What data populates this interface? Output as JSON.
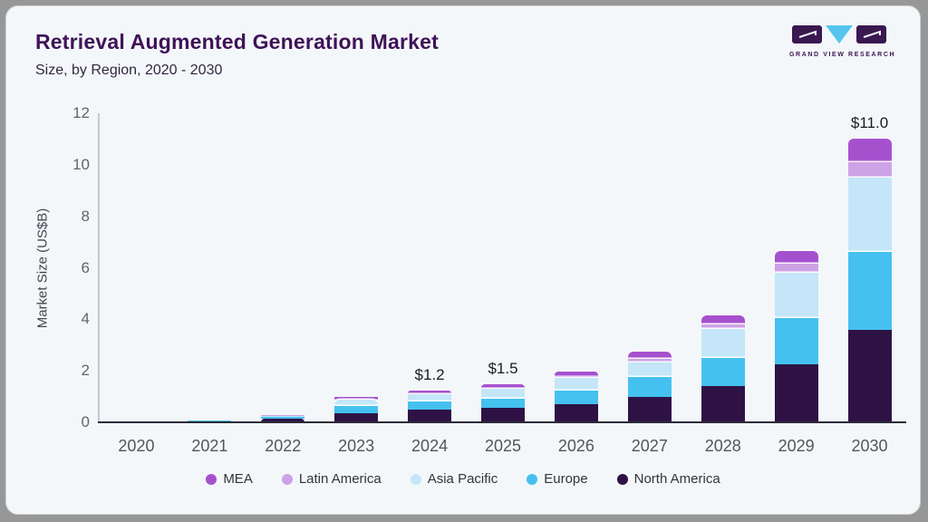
{
  "header": {
    "title": "Retrieval Augmented Generation Market",
    "subtitle": "Size, by Region, 2020 - 2030",
    "logo_text": "GRAND VIEW RESEARCH"
  },
  "colors": {
    "card_bg": "#f3f7f9",
    "outer_bg": "#979797",
    "title_text": "#3f1257",
    "logo_purple": "#3a1850",
    "logo_blue": "#56c5ee",
    "baseline": "#2b2b38",
    "axis_line": "#c7cad0"
  },
  "chart_data": {
    "type": "bar",
    "stacked": true,
    "title": "Retrieval Augmented Generation Market",
    "subtitle": "Size, by Region, 2020 - 2030",
    "xlabel": "",
    "ylabel": "Market Size (US$B)",
    "ylim": [
      0,
      12
    ],
    "yticks": [
      0,
      2,
      4,
      6,
      8,
      10,
      12
    ],
    "grid": false,
    "legend_position": "bottom",
    "categories": [
      "2020",
      "2021",
      "2022",
      "2023",
      "2024",
      "2025",
      "2026",
      "2027",
      "2028",
      "2029",
      "2030"
    ],
    "series": [
      {
        "name": "North America",
        "color": "#2e1245",
        "values": [
          0.01,
          0.05,
          0.15,
          0.37,
          0.5,
          0.57,
          0.72,
          1.0,
          1.42,
          2.25,
          3.6
        ]
      },
      {
        "name": "Europe",
        "color": "#45c1ef",
        "values": [
          0.005,
          0.01,
          0.05,
          0.27,
          0.3,
          0.35,
          0.5,
          0.77,
          1.08,
          1.8,
          3.0
        ]
      },
      {
        "name": "Asia Pacific",
        "color": "#c4e6f8",
        "values": [
          0.005,
          0.01,
          0.06,
          0.25,
          0.3,
          0.38,
          0.52,
          0.55,
          1.11,
          1.75,
          2.9
        ]
      },
      {
        "name": "Latin America",
        "color": "#cda2e6",
        "values": [
          0,
          0.005,
          0.01,
          0.02,
          0.03,
          0.05,
          0.09,
          0.15,
          0.2,
          0.35,
          0.6
        ]
      },
      {
        "name": "MEA",
        "color": "#a551ce",
        "values": [
          0,
          0.005,
          0.01,
          0.07,
          0.09,
          0.12,
          0.14,
          0.28,
          0.35,
          0.5,
          0.9
        ]
      }
    ],
    "bar_labels": {
      "2024": "$1.2",
      "2025": "$1.5",
      "2030": "$11.0"
    },
    "legend_order": [
      "MEA",
      "Latin America",
      "Asia Pacific",
      "Europe",
      "North America"
    ]
  }
}
